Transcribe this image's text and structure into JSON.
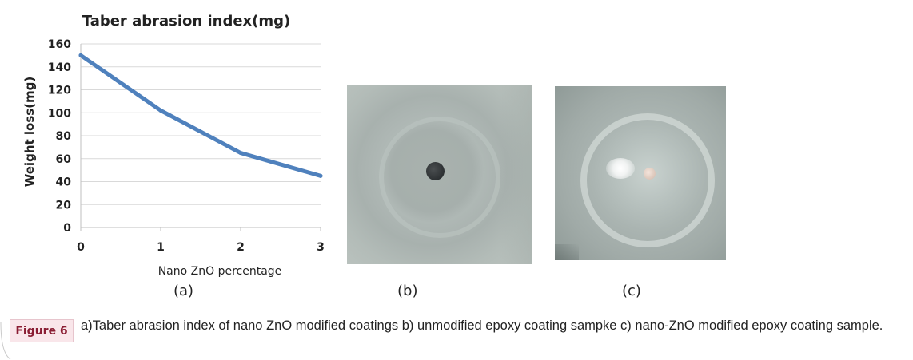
{
  "chart_data": {
    "type": "line",
    "title": "Taber abrasion index(mg)",
    "xlabel": "Nano ZnO percentage",
    "ylabel": "Weight loss(mg)",
    "x": [
      0,
      1,
      2,
      3
    ],
    "series": [
      {
        "values": [
          150,
          102,
          65,
          45
        ]
      }
    ],
    "xlim": [
      0,
      3
    ],
    "ylim": [
      0,
      160
    ],
    "yticks": [
      0,
      20,
      40,
      60,
      80,
      100,
      120,
      140,
      160
    ],
    "xticks": [
      0,
      1,
      2,
      3
    ],
    "grid": "horizontal",
    "line_color": "#4f81bd"
  },
  "panels": {
    "a": "(a)",
    "b": "(b)",
    "c": "(c)"
  },
  "caption": {
    "badge": "Figure 6",
    "text": "a)Taber abrasion index of nano ZnO modified coatings b) unmodified epoxy coating sampke c) nano-ZnO modified epoxy coating sample."
  },
  "colors": {
    "badge_bg": "#f9e6ea",
    "badge_text": "#8a1d33"
  }
}
